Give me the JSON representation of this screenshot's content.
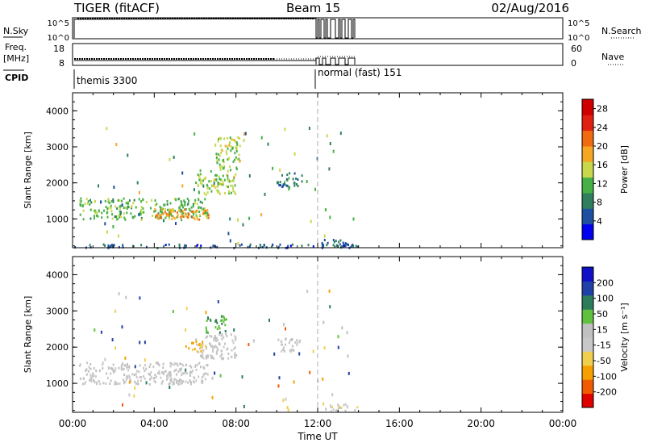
{
  "header": {
    "radar": "TIGER (fitACF)",
    "beam": "Beam 15",
    "date": "02/Aug/2016"
  },
  "strips": {
    "nsky_label": "N.Sky",
    "nsky_ticks": [
      "10^5",
      "10^0"
    ],
    "nsearch_label": "N.Search",
    "freq_label": "Freq.",
    "freq_unit": "[MHz]",
    "freq_ticks": [
      "18",
      "8"
    ],
    "nave_label": "Nave",
    "nave_ticks": [
      "60",
      "0"
    ],
    "cpid_label": "CPID",
    "cpid_1": "themis 3300",
    "cpid_2": "normal (fast) 151"
  },
  "colors": {
    "power": [
      "#0000ee",
      "#1e4fa0",
      "#2f7f5f",
      "#45b045",
      "#c8d84a",
      "#f5a623",
      "#f06a10",
      "#e02010",
      "#d00000"
    ],
    "velocity": [
      "#e00000",
      "#f05a00",
      "#f5a000",
      "#f0cf50",
      "#c8c8c8",
      "#c0c0c0",
      "#60c040",
      "#2c7c5c",
      "#2040a8",
      "#1010c8"
    ]
  },
  "chart_data": [
    {
      "type": "heatmap",
      "panel": "Power",
      "ylabel": "Slant Range [km]",
      "yticks": [
        1000,
        2000,
        3000,
        4000
      ],
      "ylim": [
        200,
        4500
      ],
      "xlim_hours": [
        0,
        24
      ],
      "colorbar": {
        "label": "Power [dB]",
        "ticks": [
          4,
          8,
          12,
          16,
          20,
          24,
          28
        ],
        "range": [
          0,
          30
        ]
      },
      "regions": [
        {
          "t0": 0.3,
          "t1": 6.6,
          "r0": 1000,
          "r1": 1600,
          "level": 12
        },
        {
          "t0": 4.0,
          "t1": 6.8,
          "r0": 1000,
          "r1": 1300,
          "level": 20
        },
        {
          "t0": 6.0,
          "t1": 8.0,
          "r0": 1700,
          "r1": 2400,
          "level": 14
        },
        {
          "t0": 7.0,
          "t1": 8.2,
          "r0": 2400,
          "r1": 3300,
          "level": 14
        },
        {
          "t0": 10.0,
          "t1": 11.2,
          "r0": 1900,
          "r1": 2300,
          "level": 8
        },
        {
          "t0": 12.3,
          "t1": 14.0,
          "r0": 250,
          "r1": 450,
          "level": 6
        },
        {
          "t0": 0.0,
          "t1": 14.0,
          "r0": 220,
          "r1": 320,
          "level": 6
        }
      ]
    },
    {
      "type": "heatmap",
      "panel": "Velocity",
      "ylabel": "Slant Range [km]",
      "yticks": [
        1000,
        2000,
        3000,
        4000
      ],
      "ylim": [
        200,
        4500
      ],
      "xlim_hours": [
        0,
        24
      ],
      "colorbar": {
        "label": "Velocity [m s⁻¹]",
        "ticks": [
          -200,
          -100,
          -50,
          -15,
          15,
          50,
          100,
          200
        ],
        "range": [
          -250,
          250
        ]
      },
      "regions": [
        {
          "t0": 0.3,
          "t1": 6.6,
          "r0": 1000,
          "r1": 1600,
          "level": 0
        },
        {
          "t0": 6.0,
          "t1": 8.0,
          "r0": 1700,
          "r1": 2400,
          "level": 0
        },
        {
          "t0": 5.5,
          "t1": 6.5,
          "r0": 1900,
          "r1": 2200,
          "level": -100
        },
        {
          "t0": 6.5,
          "t1": 7.5,
          "r0": 2400,
          "r1": 2900,
          "level": 100
        },
        {
          "t0": 10.0,
          "t1": 11.2,
          "r0": 1900,
          "r1": 2300,
          "level": 0
        },
        {
          "t0": 12.3,
          "t1": 14.0,
          "r0": 250,
          "r1": 450,
          "level": -30
        }
      ]
    }
  ],
  "time_axis": {
    "label": "Time UT",
    "ticks": [
      "00:00",
      "04:00",
      "08:00",
      "12:00",
      "16:00",
      "20:00",
      "00:00"
    ]
  }
}
